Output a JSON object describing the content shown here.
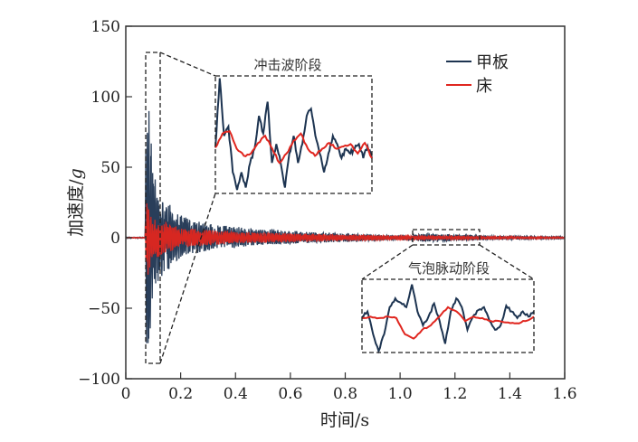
{
  "chart_data": {
    "type": "line",
    "xlabel": "时间/s",
    "ylabel_main": "加速度/",
    "ylabel_unit": "g",
    "xlim": [
      0,
      1.6
    ],
    "ylim": [
      -100,
      150
    ],
    "xticks": [
      0,
      0.2,
      0.4,
      0.6,
      0.8,
      1.0,
      1.2,
      1.4,
      1.6
    ],
    "xtick_labels": [
      "0",
      "0.2",
      "0.4",
      "0.6",
      "0.8",
      "1.0",
      "1.2",
      "1.4",
      "1.6"
    ],
    "yticks": [
      -100,
      -50,
      0,
      50,
      100,
      150
    ],
    "ytick_labels": [
      "−100",
      "−50",
      "0",
      "50",
      "100",
      "150"
    ],
    "legend_position": "top-right",
    "colors": {
      "deck": "#1d3451",
      "bed": "#e0261f"
    },
    "series": [
      {
        "key": "deck",
        "name": "甲板",
        "onset_s": 0.07,
        "envelope_t": [
          0.07,
          0.075,
          0.082,
          0.09,
          0.1,
          0.13,
          0.2,
          0.3,
          0.5,
          0.8,
          1.0,
          1.1,
          1.3,
          1.6
        ],
        "envelope_max": [
          0,
          113,
          95,
          80,
          45,
          30,
          16,
          10,
          6,
          3,
          1.5,
          3,
          1.5,
          0.8
        ],
        "envelope_min": [
          0,
          -80,
          -90,
          -70,
          -40,
          -28,
          -14,
          -9,
          -5,
          -3,
          -1.5,
          -3,
          -1.5,
          -0.8
        ]
      },
      {
        "key": "bed",
        "name": "床",
        "onset_s": 0.07,
        "envelope_t": [
          0.07,
          0.075,
          0.09,
          0.1,
          0.2,
          0.4,
          0.8,
          1.1,
          1.6
        ],
        "envelope_max": [
          0,
          28,
          20,
          15,
          7,
          4,
          2,
          1.5,
          0.5
        ],
        "envelope_min": [
          0,
          -30,
          -22,
          -15,
          -7,
          -4,
          -2,
          -1.5,
          -0.5
        ]
      }
    ],
    "insets": [
      {
        "title": "冲击波阶段",
        "t_range": [
          0.072,
          0.125
        ],
        "a_range": [
          -90,
          130
        ],
        "value_scale": "relative 0-100",
        "deck": [
          39,
          98,
          49,
          57,
          18,
          3,
          18,
          5,
          26,
          38,
          66,
          51,
          78,
          26,
          42,
          26,
          5,
          34,
          49,
          26,
          42,
          66,
          72,
          49,
          34,
          18,
          34,
          49,
          42,
          30,
          38,
          34,
          38,
          42,
          30,
          40,
          30
        ],
        "bed": [
          39,
          51,
          53,
          38,
          32,
          34,
          43,
          49,
          38,
          26,
          34,
          45,
          51,
          38,
          32,
          38,
          43,
          38,
          40,
          42,
          34,
          43,
          30
        ]
      },
      {
        "title": "气泡脉动阶段",
        "t_range": [
          1.05,
          1.29
        ],
        "a_range": [
          -6,
          6
        ],
        "value_scale": "relative 0-100",
        "deck": [
          49,
          56,
          25,
          2,
          25,
          62,
          74,
          68,
          62,
          93,
          56,
          37,
          49,
          67,
          43,
          12,
          56,
          74,
          62,
          31,
          49,
          58,
          62,
          43,
          31,
          37,
          64,
          56,
          47,
          56,
          49,
          56
        ],
        "bed": [
          47,
          49,
          47,
          49,
          47,
          25,
          19,
          31,
          37,
          49,
          62,
          56,
          43,
          49,
          47,
          43,
          43,
          41,
          40,
          43,
          49
        ]
      }
    ]
  }
}
